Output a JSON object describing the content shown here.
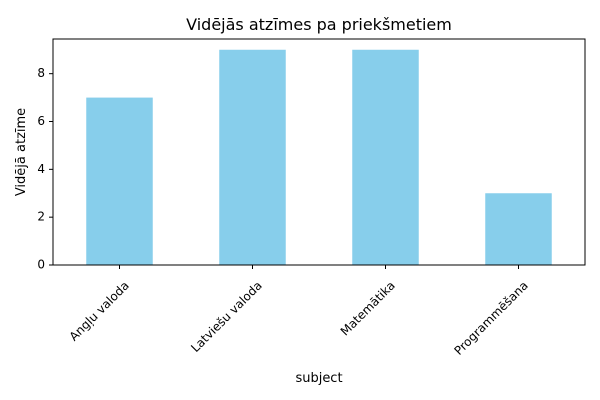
{
  "chart_data": {
    "type": "bar",
    "title": "Vidējās atzīmes pa priekšmetiem",
    "xlabel": "subject",
    "ylabel": "Vidējā atzīme",
    "categories": [
      "Angļu valoda",
      "Latviešu valoda",
      "Matemātika",
      "Programmēšana"
    ],
    "values": [
      7,
      9,
      9,
      3
    ],
    "ylim": [
      0,
      9.45
    ],
    "yticks": [
      0,
      2,
      4,
      6,
      8
    ],
    "xtick_rotation": 45,
    "bar_color": "#87ceeb",
    "grid": false,
    "legend": "none"
  }
}
